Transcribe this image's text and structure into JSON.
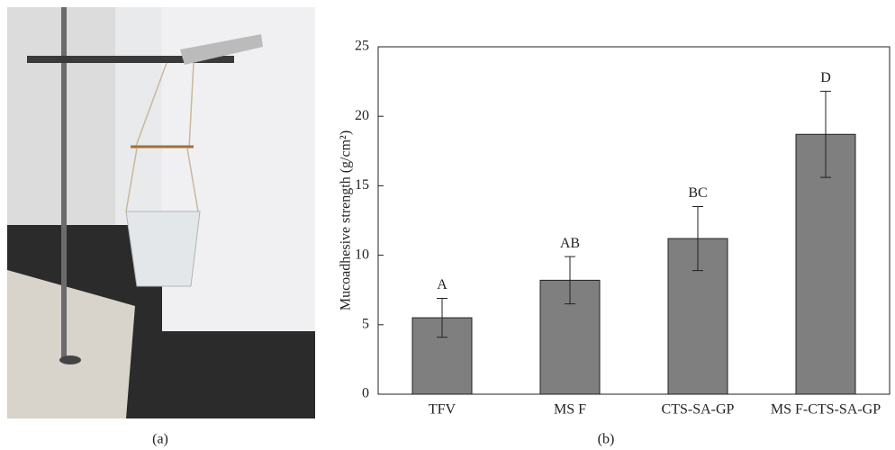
{
  "panels": {
    "left_caption": "(a)",
    "right_caption": "(b)"
  },
  "chart_data": {
    "type": "bar",
    "y_label": "Mucoadhesive strength (g/cm²)",
    "categories": [
      "TFV",
      "MS F",
      "CTS-SA-GP",
      "MS F-CTS-SA-GP"
    ],
    "values": [
      5.5,
      8.2,
      11.2,
      18.7
    ],
    "errors": [
      1.4,
      1.7,
      2.3,
      3.1
    ],
    "annotations": [
      "A",
      "AB",
      "BC",
      "D"
    ],
    "color": "#7f7f7f",
    "ylim": [
      0,
      25
    ],
    "yticks": [
      0,
      5,
      10,
      15,
      20,
      25
    ]
  }
}
